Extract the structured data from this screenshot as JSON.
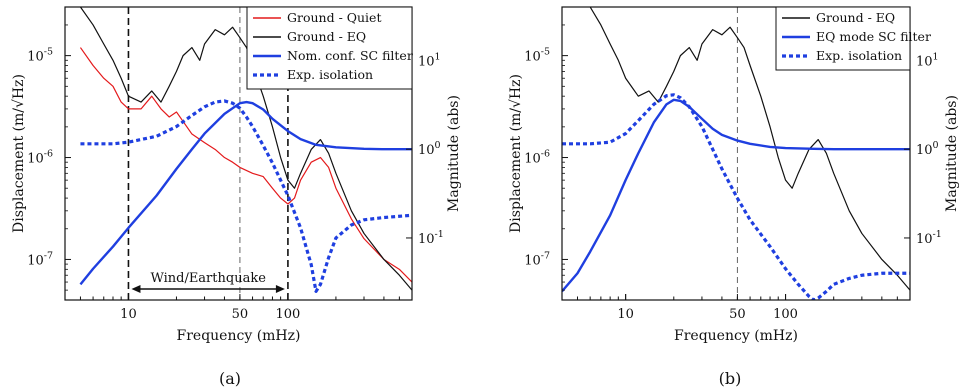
{
  "chart_data": [
    {
      "type": "line",
      "panel_label": "(a)",
      "xlabel": "Frequency (mHz)",
      "ylabel_left": "Displacement (m/√Hz)",
      "ylabel_right": "Magnitude (abs)",
      "xscale": "log",
      "yscale_left": "log",
      "yscale_right": "log",
      "xlim": [
        4,
        600
      ],
      "ylim_left": [
        4e-08,
        3e-05
      ],
      "ylim_right": [
        0.02,
        40
      ],
      "x_ticks": [
        {
          "v": 10,
          "label": "10"
        },
        {
          "v": 50,
          "label": "50"
        },
        {
          "v": 100,
          "label": "100"
        }
      ],
      "y_ticks_left": [
        {
          "v": 1e-07,
          "base": "10",
          "exp": "-7"
        },
        {
          "v": 1e-06,
          "base": "10",
          "exp": "-6"
        },
        {
          "v": 1e-05,
          "base": "10",
          "exp": "-5"
        }
      ],
      "y_ticks_right": [
        {
          "v": 0.1,
          "base": "10",
          "exp": "-1"
        },
        {
          "v": 1,
          "base": "10",
          "exp": "0"
        },
        {
          "v": 10,
          "base": "10",
          "exp": "1"
        }
      ],
      "vlines": [
        {
          "x": 10,
          "style": "dash-black"
        },
        {
          "x": 50,
          "style": "dash-gray"
        },
        {
          "x": 100,
          "style": "dash-black"
        }
      ],
      "annotation": {
        "text": "Wind/Earthquake",
        "from": 10,
        "to": 100
      },
      "legend_position": "top-right",
      "series": [
        {
          "name": "Ground - Quiet",
          "color": "#e41a1c",
          "style": "solid",
          "axis": "left",
          "x": [
            5,
            6,
            7,
            8,
            9,
            10,
            12,
            14,
            16,
            18,
            20,
            25,
            30,
            35,
            40,
            45,
            50,
            60,
            70,
            80,
            90,
            100,
            110,
            120,
            140,
            160,
            180,
            200,
            250,
            300,
            400,
            500,
            600
          ],
          "y": [
            1.2e-05,
            8e-06,
            6e-06,
            5e-06,
            3.5e-06,
            3e-06,
            3e-06,
            4e-06,
            3e-06,
            2.5e-06,
            2.8e-06,
            1.7e-06,
            1.4e-06,
            1.2e-06,
            1e-06,
            9e-07,
            8e-07,
            7e-07,
            6.5e-07,
            5e-07,
            4e-07,
            3.5e-07,
            4e-07,
            6e-07,
            9e-07,
            1e-06,
            8e-07,
            5e-07,
            2.5e-07,
            1.6e-07,
            1e-07,
            8e-08,
            6e-08
          ]
        },
        {
          "name": "Ground - EQ",
          "color": "#111111",
          "style": "solid",
          "axis": "left",
          "x": [
            5,
            6,
            7,
            8,
            9,
            10,
            12,
            14,
            16,
            18,
            20,
            22,
            25,
            28,
            30,
            35,
            40,
            45,
            50,
            55,
            60,
            70,
            80,
            90,
            100,
            110,
            120,
            140,
            160,
            180,
            200,
            250,
            300,
            400,
            500,
            600
          ],
          "y": [
            3e-05,
            2e-05,
            1.3e-05,
            9e-06,
            6e-06,
            4e-06,
            3.5e-06,
            4.5e-06,
            3.5e-06,
            5e-06,
            7e-06,
            1e-05,
            1.2e-05,
            9e-06,
            1.3e-05,
            1.8e-05,
            1.6e-05,
            1.9e-05,
            1.5e-05,
            1.2e-05,
            8e-06,
            4e-06,
            2e-06,
            1e-06,
            6e-07,
            5e-07,
            7e-07,
            1.2e-06,
            1.5e-06,
            1.1e-06,
            7e-07,
            3e-07,
            1.8e-07,
            1e-07,
            7e-08,
            5e-08
          ]
        },
        {
          "name": "Nom. conf. SC filter",
          "color": "#1f3fe0",
          "style": "solid",
          "axis": "right",
          "x": [
            5,
            6,
            8,
            10,
            15,
            20,
            25,
            30,
            40,
            50,
            55,
            60,
            70,
            80,
            100,
            120,
            150,
            200,
            300,
            400,
            600
          ],
          "y": [
            0.03,
            0.045,
            0.08,
            0.13,
            0.3,
            0.6,
            1.0,
            1.5,
            2.5,
            3.3,
            3.4,
            3.3,
            2.8,
            2.2,
            1.6,
            1.3,
            1.12,
            1.05,
            1.01,
            1.0,
            1.0
          ]
        },
        {
          "name": "Exp. isolation",
          "color": "#1f3fe0",
          "style": "dotted",
          "axis": "right",
          "x": [
            5,
            8,
            10,
            15,
            20,
            25,
            30,
            35,
            40,
            45,
            50,
            55,
            60,
            70,
            80,
            100,
            120,
            140,
            150,
            160,
            180,
            200,
            250,
            300,
            400,
            600
          ],
          "y": [
            1.15,
            1.15,
            1.2,
            1.4,
            1.8,
            2.4,
            3.0,
            3.4,
            3.5,
            3.3,
            2.9,
            2.3,
            1.8,
            1.1,
            0.7,
            0.3,
            0.13,
            0.05,
            0.025,
            0.03,
            0.06,
            0.1,
            0.14,
            0.16,
            0.17,
            0.18
          ]
        }
      ]
    },
    {
      "type": "line",
      "panel_label": "(b)",
      "xlabel": "Frequency (mHz)",
      "ylabel_left": "Displacement (m/√Hz)",
      "ylabel_right": "Magnitude (abs)",
      "xscale": "log",
      "yscale_left": "log",
      "yscale_right": "log",
      "xlim": [
        4,
        600
      ],
      "ylim_left": [
        4e-08,
        3e-05
      ],
      "ylim_right": [
        0.02,
        40
      ],
      "x_ticks": [
        {
          "v": 10,
          "label": "10"
        },
        {
          "v": 50,
          "label": "50"
        },
        {
          "v": 100,
          "label": "100"
        }
      ],
      "y_ticks_left": [
        {
          "v": 1e-07,
          "base": "10",
          "exp": "-7"
        },
        {
          "v": 1e-06,
          "base": "10",
          "exp": "-6"
        },
        {
          "v": 1e-05,
          "base": "10",
          "exp": "-5"
        }
      ],
      "y_ticks_right": [
        {
          "v": 0.1,
          "base": "10",
          "exp": "-1"
        },
        {
          "v": 1,
          "base": "10",
          "exp": "0"
        },
        {
          "v": 10,
          "base": "10",
          "exp": "1"
        }
      ],
      "vlines": [
        {
          "x": 50,
          "style": "dash-gray"
        }
      ],
      "legend_position": "top-right",
      "series": [
        {
          "name": "Ground - EQ",
          "color": "#111111",
          "style": "solid",
          "axis": "left",
          "x": [
            6,
            7,
            8,
            9,
            10,
            12,
            14,
            16,
            18,
            20,
            22,
            25,
            28,
            30,
            35,
            40,
            45,
            50,
            55,
            60,
            70,
            80,
            90,
            100,
            110,
            120,
            140,
            160,
            180,
            200,
            250,
            300,
            400,
            500,
            600
          ],
          "y": [
            3e-05,
            2e-05,
            1.3e-05,
            9e-06,
            6e-06,
            4e-06,
            4.5e-06,
            3.5e-06,
            5e-06,
            7e-06,
            1e-05,
            1.2e-05,
            9e-06,
            1.3e-05,
            1.8e-05,
            1.6e-05,
            1.9e-05,
            1.5e-05,
            1.2e-05,
            8e-06,
            4e-06,
            2e-06,
            1e-06,
            6e-07,
            5e-07,
            7e-07,
            1.2e-06,
            1.5e-06,
            1.1e-06,
            7e-07,
            3e-07,
            1.8e-07,
            1e-07,
            7e-08,
            5e-08
          ]
        },
        {
          "name": "EQ mode SC filter",
          "color": "#1f3fe0",
          "style": "solid",
          "axis": "right",
          "x": [
            4,
            5,
            6,
            8,
            10,
            12,
            15,
            18,
            20,
            22,
            25,
            30,
            35,
            40,
            50,
            60,
            80,
            100,
            150,
            200,
            300,
            600
          ],
          "y": [
            0.025,
            0.04,
            0.07,
            0.18,
            0.45,
            0.9,
            2.0,
            3.2,
            3.6,
            3.5,
            3.0,
            2.2,
            1.7,
            1.45,
            1.25,
            1.15,
            1.06,
            1.03,
            1.01,
            1.0,
            1.0,
            1.0
          ]
        },
        {
          "name": "Exp. isolation",
          "color": "#1f3fe0",
          "style": "dotted",
          "axis": "right",
          "x": [
            4,
            6,
            8,
            10,
            12,
            15,
            18,
            20,
            22,
            25,
            30,
            35,
            40,
            50,
            60,
            80,
            100,
            120,
            140,
            150,
            160,
            180,
            200,
            250,
            300,
            400,
            600
          ],
          "y": [
            1.15,
            1.15,
            1.2,
            1.5,
            2.1,
            3.2,
            4.0,
            4.1,
            3.8,
            3.0,
            1.8,
            1.0,
            0.6,
            0.28,
            0.16,
            0.08,
            0.045,
            0.03,
            0.022,
            0.02,
            0.021,
            0.025,
            0.03,
            0.035,
            0.038,
            0.04,
            0.04
          ]
        }
      ]
    }
  ]
}
